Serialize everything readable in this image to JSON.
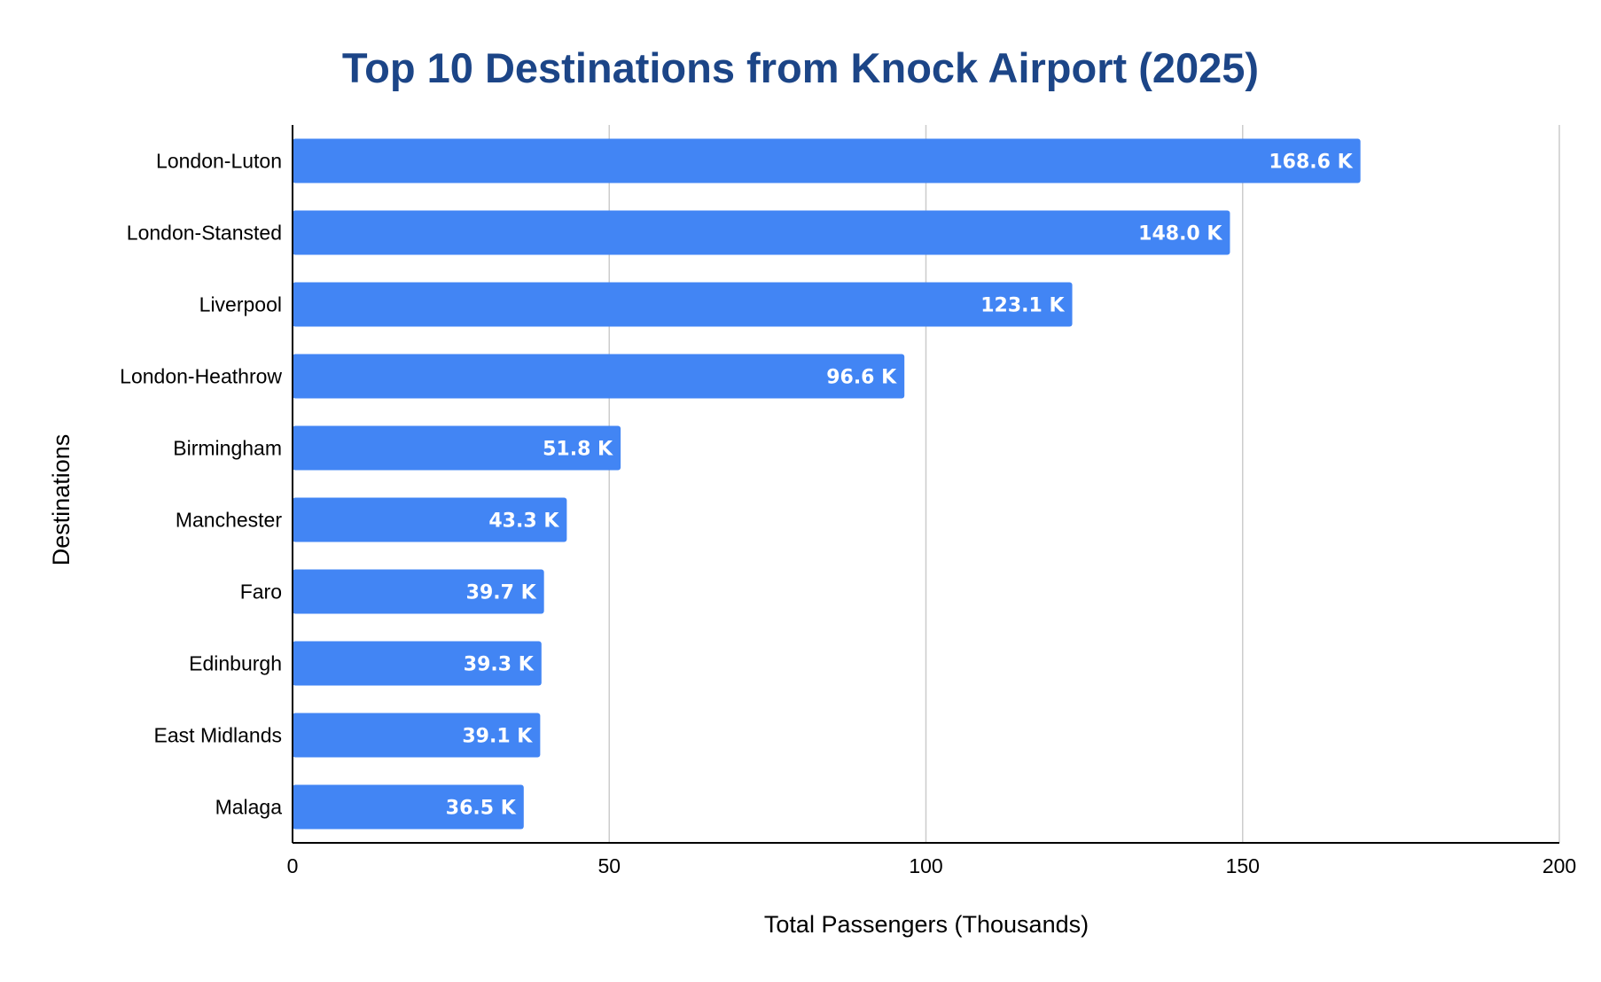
{
  "chart_data": {
    "type": "bar",
    "orientation": "horizontal",
    "title": "Top 10 Destinations from Knock Airport (2025)",
    "xlabel": "Total Passengers (Thousands)",
    "ylabel": "Destinations",
    "categories": [
      "London-Luton",
      "London-Stansted",
      "Liverpool",
      "London-Heathrow",
      "Birmingham",
      "Manchester",
      "Faro",
      "Edinburgh",
      "East Midlands",
      "Malaga"
    ],
    "values": [
      168.6,
      148.0,
      123.1,
      96.6,
      51.8,
      43.3,
      39.7,
      39.3,
      39.1,
      36.5
    ],
    "data_labels": [
      "168.6 K",
      "148.0 K",
      "123.1 K",
      "96.6 K",
      "51.8 K",
      "43.3 K",
      "39.7 K",
      "39.3 K",
      "39.1 K",
      "36.5 K"
    ],
    "xlim": [
      0,
      200
    ],
    "xticks": [
      0,
      50,
      100,
      150,
      200
    ],
    "xtick_labels": [
      "0",
      "50",
      "100",
      "150",
      "200"
    ],
    "grid": "vertical",
    "legend": "none",
    "colors": {
      "bar": "#4285f4",
      "title": "#1c4587",
      "grid": "#cccccc",
      "axis": "#000000",
      "data_label": "#ffffff"
    }
  }
}
